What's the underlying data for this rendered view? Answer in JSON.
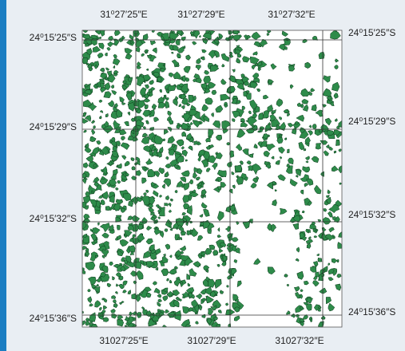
{
  "map": {
    "top_labels": [
      "31⁰27′25″E",
      "31⁰27′29″E",
      "31⁰27′32″E"
    ],
    "bottom_labels": [
      "31027′25″E",
      "31027′29″E",
      "31027′32″E"
    ],
    "left_labels": [
      "24⁰15′25″S",
      "24⁰15′29″S",
      "24⁰15′32″S",
      "24⁰15′36″S"
    ],
    "right_labels": [
      "24⁰15′25″S",
      "24⁰15′29″S",
      "24⁰15′32″S",
      "24⁰15′36″S"
    ]
  }
}
